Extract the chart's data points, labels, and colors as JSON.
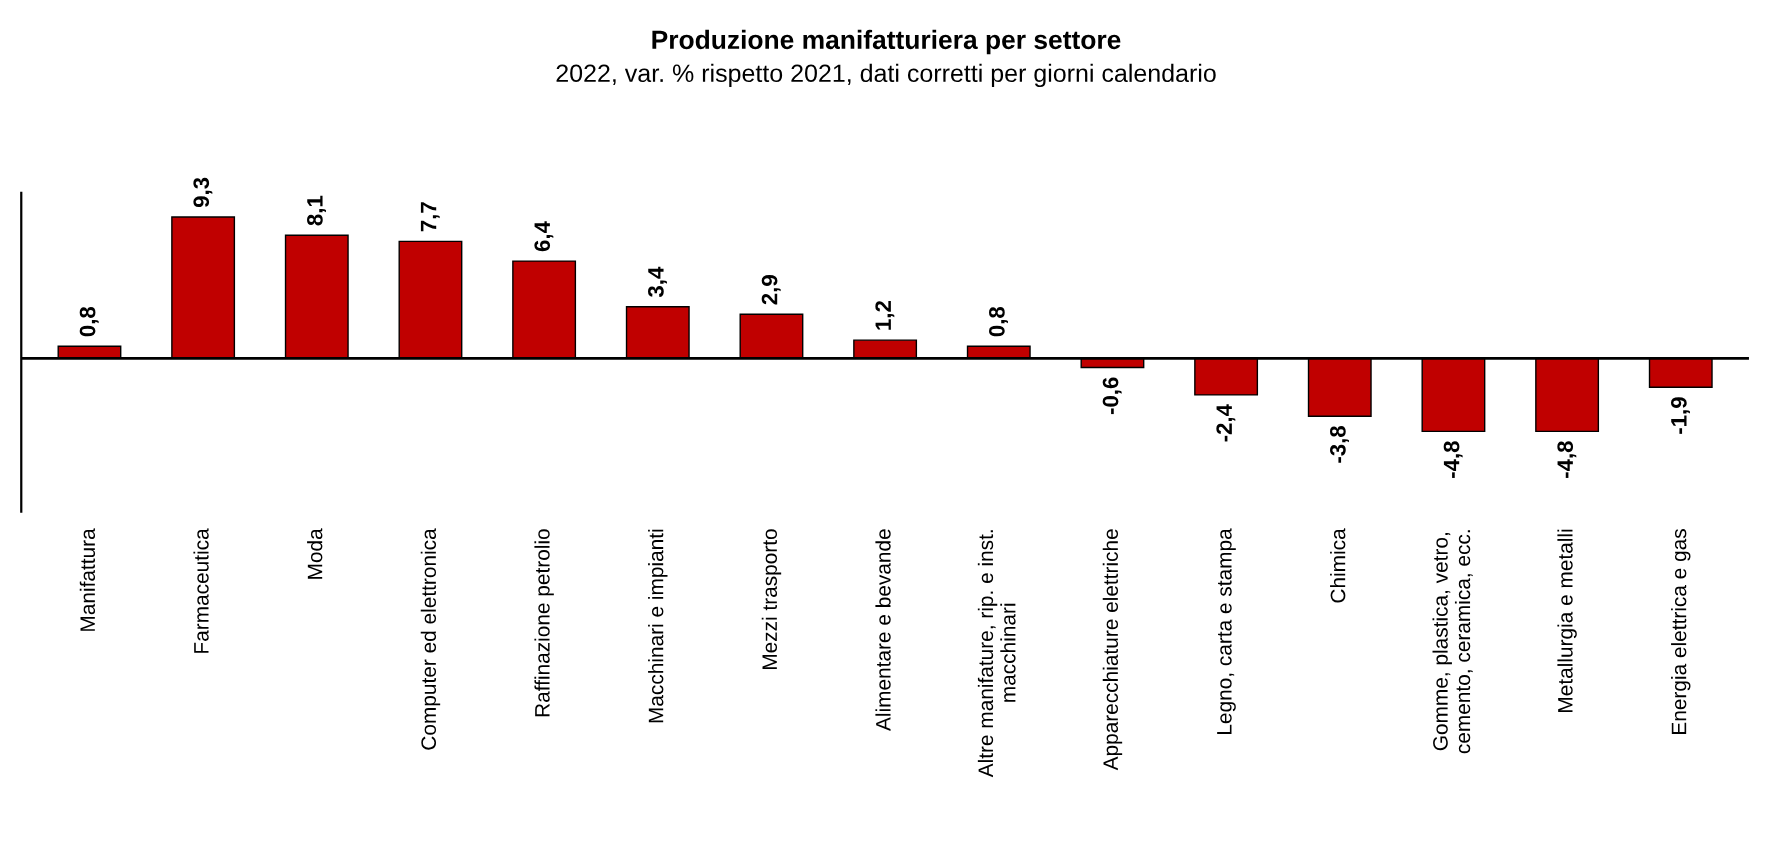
{
  "chart_data": {
    "type": "bar",
    "title": "Produzione manifatturiera per settore",
    "subtitle": "2022, var. % rispetto 2021, dati corretti per giorni calendario",
    "categories": [
      "Manifattura",
      "Farmaceutica",
      "Moda",
      "Computer ed elettronica",
      "Raffinazione petrolio",
      "Macchinari e impianti",
      "Mezzi trasporto",
      "Alimentare e bevande",
      "Altre manifature, rip. e inst.\nmacchinari",
      "Apparecchiature elettriche",
      "Legno, carta e stampa",
      "Chimica",
      "Gomme, plastica, vetro,\ncemento, ceramica, ecc.",
      "Metallurgia e metalli",
      "Energia elettrica e gas"
    ],
    "values": [
      0.8,
      9.3,
      8.1,
      7.7,
      6.4,
      3.4,
      2.9,
      1.2,
      0.8,
      -0.6,
      -2.4,
      -3.8,
      -4.8,
      -4.8,
      -1.9
    ],
    "value_labels": [
      "0,8",
      "9,3",
      "8,1",
      "7,7",
      "6,4",
      "3,4",
      "2,9",
      "1,2",
      "0,8",
      "-0,6",
      "-2,4",
      "-3,8",
      "-4,8",
      "-4,8",
      "-1,9"
    ],
    "color": "#c00000",
    "grid": false,
    "legend": false,
    "tick_labels": "x"
  }
}
